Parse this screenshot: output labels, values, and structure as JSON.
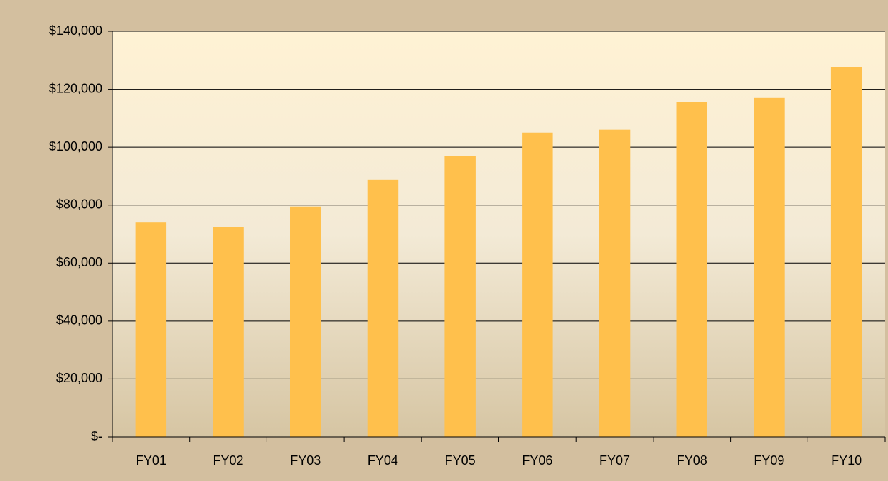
{
  "chart_data": {
    "type": "bar",
    "categories": [
      "FY01",
      "FY02",
      "FY03",
      "FY04",
      "FY05",
      "FY06",
      "FY07",
      "FY08",
      "FY09",
      "FY10"
    ],
    "values": [
      74000,
      72500,
      79500,
      88800,
      97000,
      105000,
      106000,
      115500,
      117000,
      127700
    ],
    "color": "#ffc04c",
    "ylim": [
      0,
      140000
    ],
    "yticks": [
      {
        "value": 0,
        "label": "$-"
      },
      {
        "value": 20000,
        "label": "$20,000"
      },
      {
        "value": 40000,
        "label": "$40,000"
      },
      {
        "value": 60000,
        "label": "$60,000"
      },
      {
        "value": 80000,
        "label": "$80,000"
      },
      {
        "value": 100000,
        "label": "$100,000"
      },
      {
        "value": 120000,
        "label": "$120,000"
      },
      {
        "value": 140000,
        "label": "$140,000"
      }
    ],
    "grid": true
  }
}
